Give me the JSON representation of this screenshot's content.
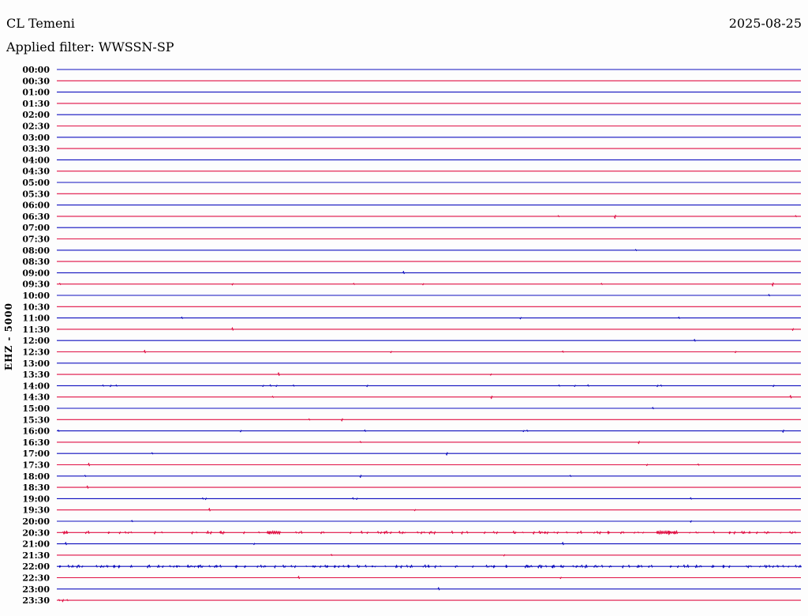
{
  "header": {
    "station": "CL Temeni",
    "date": "2025-08-25",
    "filter_label": "Applied filter: WWSSN-SP"
  },
  "y_axis_label": "EHZ - 5000",
  "colors": {
    "trace_blue": "#0f0fbe",
    "trace_red": "#e01044",
    "text": "#000000",
    "background": "#fdfdfd"
  },
  "chart_data": {
    "type": "line",
    "title": "CL Temeni helicorder day plot",
    "subtitle": "Applied filter: WWSSN-SP",
    "date": "2025-08-25",
    "channel_label": "EHZ - 5000",
    "row_minutes": 30,
    "rows_count": 48,
    "x_range_minutes": [
      0,
      30
    ],
    "alternating_colors": [
      "blue",
      "red"
    ],
    "legend": "none",
    "grid": "off",
    "rows": [
      {
        "time": "00:00",
        "color": "blue",
        "events": []
      },
      {
        "time": "00:30",
        "color": "red",
        "events": []
      },
      {
        "time": "01:00",
        "color": "blue",
        "events": []
      },
      {
        "time": "01:30",
        "color": "red",
        "events": []
      },
      {
        "time": "02:00",
        "color": "blue",
        "events": []
      },
      {
        "time": "02:30",
        "color": "red",
        "events": []
      },
      {
        "time": "03:00",
        "color": "blue",
        "events": []
      },
      {
        "time": "03:30",
        "color": "red",
        "events": []
      },
      {
        "time": "04:00",
        "color": "blue",
        "events": []
      },
      {
        "time": "04:30",
        "color": "red",
        "events": []
      },
      {
        "time": "05:00",
        "color": "blue",
        "events": []
      },
      {
        "time": "05:30",
        "color": "red",
        "events": []
      },
      {
        "time": "06:00",
        "color": "blue",
        "events": []
      },
      {
        "time": "06:30",
        "color": "red",
        "events": [
          [
            0.674,
            1
          ],
          [
            0.75,
            2.5
          ],
          [
            0.993,
            1
          ]
        ]
      },
      {
        "time": "07:00",
        "color": "blue",
        "events": []
      },
      {
        "time": "07:30",
        "color": "red",
        "events": []
      },
      {
        "time": "08:00",
        "color": "blue",
        "events": [
          [
            0.778,
            1
          ]
        ]
      },
      {
        "time": "08:30",
        "color": "red",
        "events": []
      },
      {
        "time": "09:00",
        "color": "blue",
        "events": [
          [
            0.466,
            1.8
          ]
        ]
      },
      {
        "time": "09:30",
        "color": "red",
        "events": [
          [
            0.004,
            1
          ],
          [
            0.236,
            1.2
          ],
          [
            0.399,
            1
          ],
          [
            0.492,
            1
          ],
          [
            0.732,
            1
          ],
          [
            0.962,
            2.5
          ]
        ]
      },
      {
        "time": "10:00",
        "color": "blue",
        "events": [
          [
            0.957,
            1.2
          ]
        ]
      },
      {
        "time": "10:30",
        "color": "red",
        "events": []
      },
      {
        "time": "11:00",
        "color": "blue",
        "events": [
          [
            0.168,
            1.2
          ],
          [
            0.623,
            1.2
          ],
          [
            0.836,
            1.2
          ]
        ]
      },
      {
        "time": "11:30",
        "color": "red",
        "events": [
          [
            0.236,
            2
          ],
          [
            0.989,
            1.5
          ]
        ]
      },
      {
        "time": "12:00",
        "color": "blue",
        "events": [
          [
            0.857,
            1.5
          ]
        ]
      },
      {
        "time": "12:30",
        "color": "red",
        "events": [
          [
            0.118,
            2
          ],
          [
            0.449,
            1
          ],
          [
            0.68,
            1
          ],
          [
            0.912,
            1
          ]
        ]
      },
      {
        "time": "13:00",
        "color": "blue",
        "events": []
      },
      {
        "time": "13:30",
        "color": "red",
        "events": [
          [
            0.298,
            2.2
          ],
          [
            0.583,
            1
          ]
        ]
      },
      {
        "time": "14:00",
        "color": "blue",
        "events": [
          [
            0.062,
            1
          ],
          [
            0.072,
            1.2
          ],
          [
            0.08,
            1
          ],
          [
            0.277,
            1
          ],
          [
            0.287,
            1.2
          ],
          [
            0.295,
            1
          ],
          [
            0.318,
            1
          ],
          [
            0.417,
            1.2
          ],
          [
            0.675,
            1
          ],
          [
            0.696,
            1
          ],
          [
            0.714,
            1.2
          ],
          [
            0.807,
            1.2
          ],
          [
            0.812,
            1
          ],
          [
            0.963,
            1.2
          ]
        ]
      },
      {
        "time": "14:30",
        "color": "red",
        "events": [
          [
            0.29,
            1
          ],
          [
            0.584,
            2
          ],
          [
            0.986,
            2
          ]
        ]
      },
      {
        "time": "15:00",
        "color": "blue",
        "events": [
          [
            0.801,
            1.2
          ]
        ]
      },
      {
        "time": "15:30",
        "color": "red",
        "events": [
          [
            0.339,
            1
          ],
          [
            0.383,
            1.8
          ]
        ]
      },
      {
        "time": "16:00",
        "color": "blue",
        "events": [
          [
            0.002,
            1
          ],
          [
            0.247,
            1.2
          ],
          [
            0.414,
            1.2
          ],
          [
            0.627,
            1
          ],
          [
            0.632,
            1
          ],
          [
            0.976,
            1.8
          ]
        ]
      },
      {
        "time": "16:30",
        "color": "red",
        "events": [
          [
            0.408,
            1
          ],
          [
            0.782,
            1.8
          ]
        ]
      },
      {
        "time": "17:00",
        "color": "blue",
        "events": [
          [
            0.128,
            1
          ],
          [
            0.524,
            2
          ]
        ]
      },
      {
        "time": "17:30",
        "color": "red",
        "events": [
          [
            0.043,
            2
          ],
          [
            0.793,
            1
          ],
          [
            0.862,
            1
          ]
        ]
      },
      {
        "time": "18:00",
        "color": "blue",
        "events": [
          [
            0.038,
            1
          ],
          [
            0.408,
            1.8
          ],
          [
            0.69,
            1
          ]
        ]
      },
      {
        "time": "18:30",
        "color": "red",
        "events": [
          [
            0.041,
            1.8
          ]
        ]
      },
      {
        "time": "19:00",
        "color": "blue",
        "events": [
          [
            0.196,
            1
          ],
          [
            0.2,
            1.2
          ],
          [
            0.398,
            1.2
          ],
          [
            0.403,
            1
          ],
          [
            0.852,
            1.2
          ]
        ]
      },
      {
        "time": "19:30",
        "color": "red",
        "events": [
          [
            0.205,
            2
          ],
          [
            0.481,
            1
          ]
        ]
      },
      {
        "time": "20:00",
        "color": "blue",
        "events": [
          [
            0.101,
            1
          ],
          [
            0.852,
            1.2
          ]
        ]
      },
      {
        "time": "20:30",
        "color": "red",
        "events": [],
        "noise": 110,
        "bursts": [
          [
            0.285,
            0.3
          ],
          [
            0.807,
            0.833
          ]
        ]
      },
      {
        "time": "21:00",
        "color": "blue",
        "events": [
          [
            0.012,
            1.8
          ],
          [
            0.265,
            1
          ],
          [
            0.68,
            1.8
          ]
        ]
      },
      {
        "time": "21:30",
        "color": "red",
        "events": [
          [
            0.369,
            1
          ],
          [
            0.601,
            1
          ]
        ]
      },
      {
        "time": "22:00",
        "color": "blue",
        "events": [],
        "noise": 175
      },
      {
        "time": "22:30",
        "color": "red",
        "events": [
          [
            0.325,
            1.8
          ],
          [
            0.677,
            1
          ]
        ]
      },
      {
        "time": "23:00",
        "color": "blue",
        "events": [
          [
            0.513,
            1.8
          ]
        ]
      },
      {
        "time": "23:30",
        "color": "red",
        "events": [
          [
            0.003,
            1
          ],
          [
            0.008,
            1.8
          ],
          [
            0.014,
            1
          ]
        ]
      }
    ]
  }
}
